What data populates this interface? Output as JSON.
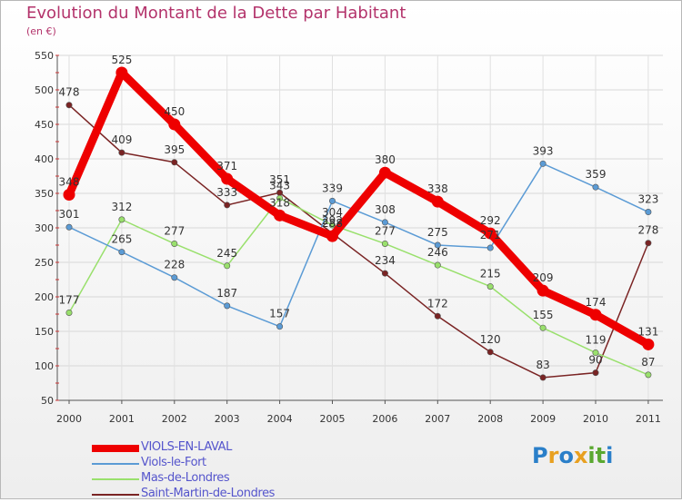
{
  "chart_data": {
    "type": "line",
    "title": "Evolution du Montant de la Dette par Habitant",
    "subtitle": "(en €)",
    "xlabel": "",
    "ylabel": "",
    "categories": [
      "2000",
      "2001",
      "2002",
      "2003",
      "2004",
      "2005",
      "2006",
      "2007",
      "2008",
      "2009",
      "2010",
      "2011"
    ],
    "ylim": [
      50,
      550
    ],
    "yticks": [
      50,
      100,
      150,
      200,
      250,
      300,
      350,
      400,
      450,
      500,
      550
    ],
    "grid": true,
    "legend_position": "bottom-left",
    "series": [
      {
        "name": "Saint-Martin-de-Londres",
        "color": "#7a2424",
        "width": "thin",
        "values": [
          478,
          409,
          395,
          333,
          351,
          292,
          234,
          172,
          120,
          83,
          90,
          278
        ]
      },
      {
        "name": "Mas-de-Londres",
        "color": "#99e06c",
        "width": "thin",
        "values": [
          177,
          312,
          277,
          245,
          343,
          304,
          277,
          246,
          215,
          155,
          119,
          87
        ]
      },
      {
        "name": "Viols-le-Fort",
        "color": "#5b9bd5",
        "width": "thin",
        "values": [
          301,
          265,
          228,
          187,
          157,
          339,
          308,
          275,
          271,
          393,
          359,
          323
        ]
      },
      {
        "name": "VIOLS-EN-LAVAL",
        "color": "#ee0000",
        "width": "thick",
        "values": [
          348,
          525,
          450,
          371,
          318,
          288,
          380,
          338,
          292,
          209,
          174,
          131
        ]
      }
    ],
    "data_labels": [
      {
        "series": 3,
        "labels": [
          "348",
          "525",
          "450",
          "371",
          "318",
          "288",
          "380",
          "338",
          "292",
          "209",
          "174",
          "131"
        ]
      },
      {
        "series": 2,
        "labels": [
          "301",
          "265",
          "228",
          "187",
          "157",
          "339",
          "308",
          "275",
          "271",
          "393",
          "359",
          "323"
        ]
      },
      {
        "series": 1,
        "labels": [
          "177",
          "312",
          "277",
          "245",
          "343",
          "304",
          "277",
          "246",
          "215",
          "155",
          "119",
          "87"
        ]
      },
      {
        "series": 0,
        "labels": [
          "478",
          "409",
          "395",
          "333",
          "351",
          "292",
          "234",
          "172",
          "120",
          "83",
          "90",
          "278"
        ]
      }
    ]
  },
  "legend": [
    {
      "label": "VIOLS-EN-LAVAL",
      "color": "#ee0000",
      "thick": true
    },
    {
      "label": "Viols-le-Fort",
      "color": "#5b9bd5",
      "thick": false
    },
    {
      "label": "Mas-de-Londres",
      "color": "#99e06c",
      "thick": false
    },
    {
      "label": "Saint-Martin-de-Londres",
      "color": "#7a2424",
      "thick": false
    }
  ],
  "brand": {
    "letters": [
      "P",
      "r",
      "o",
      "x",
      "i",
      "t",
      "i"
    ],
    "colors": [
      "#2a7fc9",
      "#e8a020",
      "#2a7fc9",
      "#e8a020",
      "#5aa830",
      "#5aa830",
      "#2a7fc9"
    ]
  }
}
